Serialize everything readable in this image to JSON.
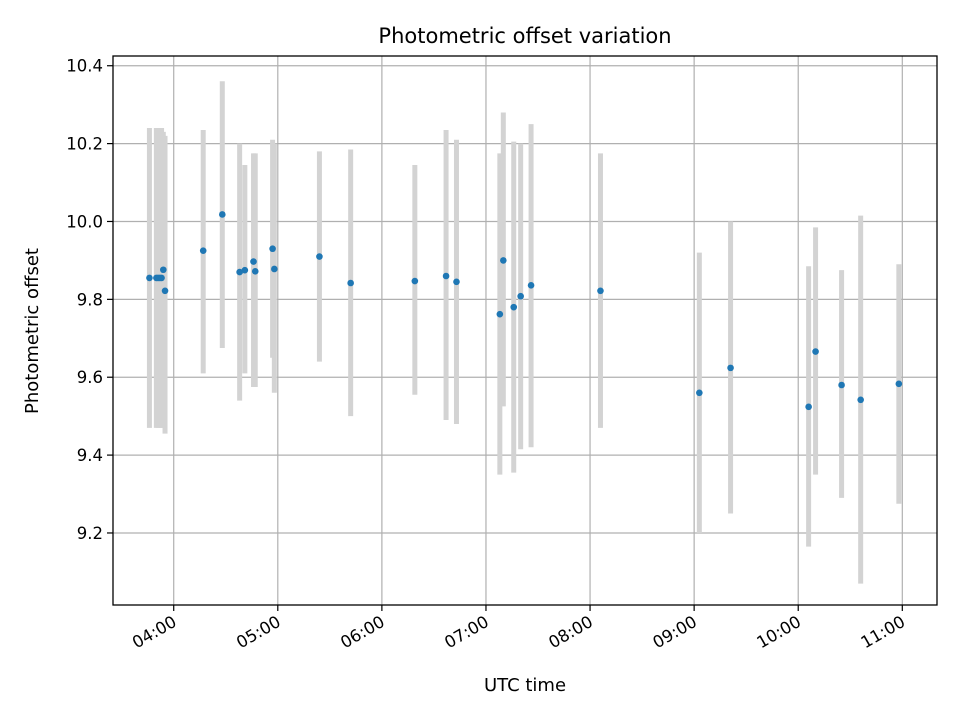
{
  "chart_data": {
    "type": "scatter",
    "title": "Photometric offset variation",
    "xlabel": "UTC time",
    "ylabel": "Photometric offset",
    "xlim": [
      "03:25",
      "11:20"
    ],
    "ylim": [
      9.015,
      10.425
    ],
    "xticks": [
      "04:00",
      "05:00",
      "06:00",
      "07:00",
      "08:00",
      "09:00",
      "10:00",
      "11:00"
    ],
    "yticks": [
      9.2,
      9.4,
      9.6,
      9.8,
      10.0,
      10.2,
      10.4
    ],
    "grid": true,
    "marker_color": "#1f77b4",
    "errorbar_color": "#d3d3d3",
    "points": [
      {
        "x": "03:46",
        "y": 9.855,
        "lo": 9.47,
        "hi": 10.24
      },
      {
        "x": "03:50",
        "y": 9.855,
        "lo": 9.47,
        "hi": 10.24
      },
      {
        "x": "03:51",
        "y": 9.855,
        "lo": 9.47,
        "hi": 10.24
      },
      {
        "x": "03:52",
        "y": 9.855,
        "lo": 9.47,
        "hi": 10.24
      },
      {
        "x": "03:53",
        "y": 9.855,
        "lo": 9.47,
        "hi": 10.24
      },
      {
        "x": "03:54",
        "y": 9.876,
        "lo": 9.47,
        "hi": 10.23
      },
      {
        "x": "03:55",
        "y": 9.822,
        "lo": 9.455,
        "hi": 10.22
      },
      {
        "x": "04:17",
        "y": 9.925,
        "lo": 9.61,
        "hi": 10.235
      },
      {
        "x": "04:28",
        "y": 10.018,
        "lo": 9.675,
        "hi": 10.36
      },
      {
        "x": "04:38",
        "y": 9.87,
        "lo": 9.54,
        "hi": 10.2
      },
      {
        "x": "04:41",
        "y": 9.875,
        "lo": 9.61,
        "hi": 10.145
      },
      {
        "x": "04:46",
        "y": 9.897,
        "lo": 9.575,
        "hi": 10.175
      },
      {
        "x": "04:47",
        "y": 9.872,
        "lo": 9.575,
        "hi": 10.175
      },
      {
        "x": "04:57",
        "y": 9.93,
        "lo": 9.65,
        "hi": 10.21
      },
      {
        "x": "04:58",
        "y": 9.878,
        "lo": 9.56,
        "hi": 10.2
      },
      {
        "x": "05:24",
        "y": 9.91,
        "lo": 9.64,
        "hi": 10.18
      },
      {
        "x": "05:42",
        "y": 9.842,
        "lo": 9.5,
        "hi": 10.185
      },
      {
        "x": "06:19",
        "y": 9.847,
        "lo": 9.555,
        "hi": 10.145
      },
      {
        "x": "06:37",
        "y": 9.86,
        "lo": 9.49,
        "hi": 10.235
      },
      {
        "x": "06:43",
        "y": 9.845,
        "lo": 9.48,
        "hi": 10.21
      },
      {
        "x": "07:08",
        "y": 9.762,
        "lo": 9.35,
        "hi": 10.175
      },
      {
        "x": "07:10",
        "y": 9.9,
        "lo": 9.525,
        "hi": 10.28
      },
      {
        "x": "07:16",
        "y": 9.78,
        "lo": 9.355,
        "hi": 10.205
      },
      {
        "x": "07:20",
        "y": 9.808,
        "lo": 9.415,
        "hi": 10.2
      },
      {
        "x": "07:26",
        "y": 9.836,
        "lo": 9.42,
        "hi": 10.25
      },
      {
        "x": "08:06",
        "y": 9.822,
        "lo": 9.47,
        "hi": 10.175
      },
      {
        "x": "09:03",
        "y": 9.56,
        "lo": 9.2,
        "hi": 9.92
      },
      {
        "x": "09:21",
        "y": 9.624,
        "lo": 9.25,
        "hi": 10.0
      },
      {
        "x": "10:06",
        "y": 9.524,
        "lo": 9.165,
        "hi": 9.885
      },
      {
        "x": "10:10",
        "y": 9.666,
        "lo": 9.35,
        "hi": 9.985
      },
      {
        "x": "10:25",
        "y": 9.58,
        "lo": 9.29,
        "hi": 9.875
      },
      {
        "x": "10:36",
        "y": 9.542,
        "lo": 9.07,
        "hi": 10.015
      },
      {
        "x": "10:58",
        "y": 9.583,
        "lo": 9.275,
        "hi": 9.89
      }
    ]
  }
}
